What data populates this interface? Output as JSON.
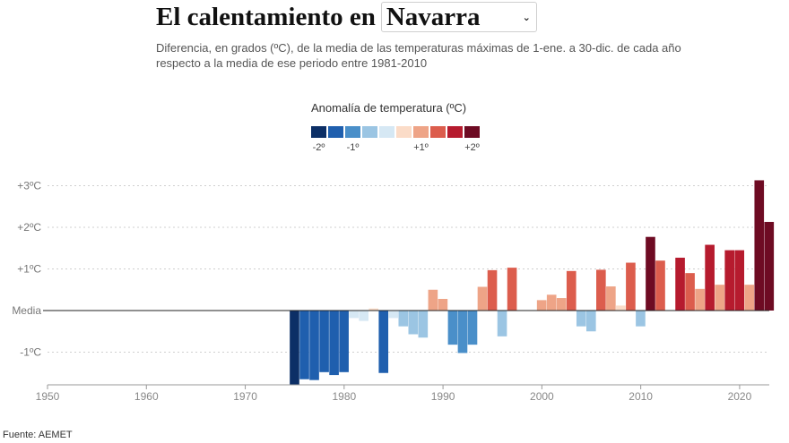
{
  "header": {
    "title_prefix": "El calentamiento en",
    "region_selected": "Navarra",
    "subtitle": "Diferencia, en grados (ºC), de la media de las temperaturas máximas de 1-ene. a 30-dic. de cada año respecto a la media de ese periodo entre 1981-2010",
    "chevron_icon": "chevron-down-icon"
  },
  "legend": {
    "title": "Anomalía de temperatura (ºC)",
    "colors": [
      "#0c2f66",
      "#1f5fae",
      "#4a8fc9",
      "#9bc5e3",
      "#d6e8f4",
      "#fbdcc8",
      "#eea487",
      "#dc5d4d",
      "#b61b2e",
      "#6e0b23"
    ],
    "labels": [
      {
        "text": "-2º",
        "index": 0
      },
      {
        "text": "-1º",
        "index": 2
      },
      {
        "text": "+1º",
        "index": 6
      },
      {
        "text": "+2º",
        "index": 9
      }
    ]
  },
  "source": "Fuente: AEMET",
  "chart_data": {
    "type": "bar",
    "title": "El calentamiento en Navarra",
    "ylabel": "",
    "ylim": [
      -1.8,
      3.4
    ],
    "xlim": [
      1950,
      2023
    ],
    "grid": true,
    "x_ticks": [
      1950,
      1960,
      1970,
      1980,
      1990,
      2000,
      2010,
      2020
    ],
    "y_ticks": [
      {
        "value": 3,
        "label": "+3ºC"
      },
      {
        "value": 2,
        "label": "+2ºC"
      },
      {
        "value": 1,
        "label": "+1ºC"
      },
      {
        "value": 0,
        "label": "Media"
      },
      {
        "value": -1,
        "label": "-1ºC"
      }
    ],
    "x": [
      1975,
      1976,
      1977,
      1978,
      1979,
      1980,
      1981,
      1982,
      1983,
      1984,
      1985,
      1986,
      1987,
      1988,
      1989,
      1990,
      1991,
      1992,
      1993,
      1994,
      1995,
      1996,
      1997,
      1998,
      1999,
      2000,
      2001,
      2002,
      2003,
      2004,
      2005,
      2006,
      2007,
      2008,
      2009,
      2010,
      2011,
      2012,
      2013,
      2014,
      2015,
      2016,
      2017,
      2018,
      2019,
      2020,
      2021,
      2022,
      2023
    ],
    "values": [
      -1.78,
      -1.65,
      -1.67,
      -1.48,
      -1.55,
      -1.48,
      -0.18,
      -0.25,
      0.05,
      -1.5,
      -0.18,
      -0.38,
      -0.57,
      -0.65,
      0.5,
      0.28,
      -0.82,
      -1.02,
      -0.82,
      0.57,
      0.97,
      -0.62,
      1.03,
      0.0,
      0.0,
      0.25,
      0.38,
      0.3,
      0.95,
      -0.38,
      -0.5,
      0.98,
      0.58,
      0.12,
      1.15,
      -0.38,
      1.77,
      1.2,
      0.0,
      1.27,
      0.9,
      0.52,
      1.58,
      0.62,
      1.45,
      1.45,
      0.62,
      3.13,
      2.13
    ]
  }
}
